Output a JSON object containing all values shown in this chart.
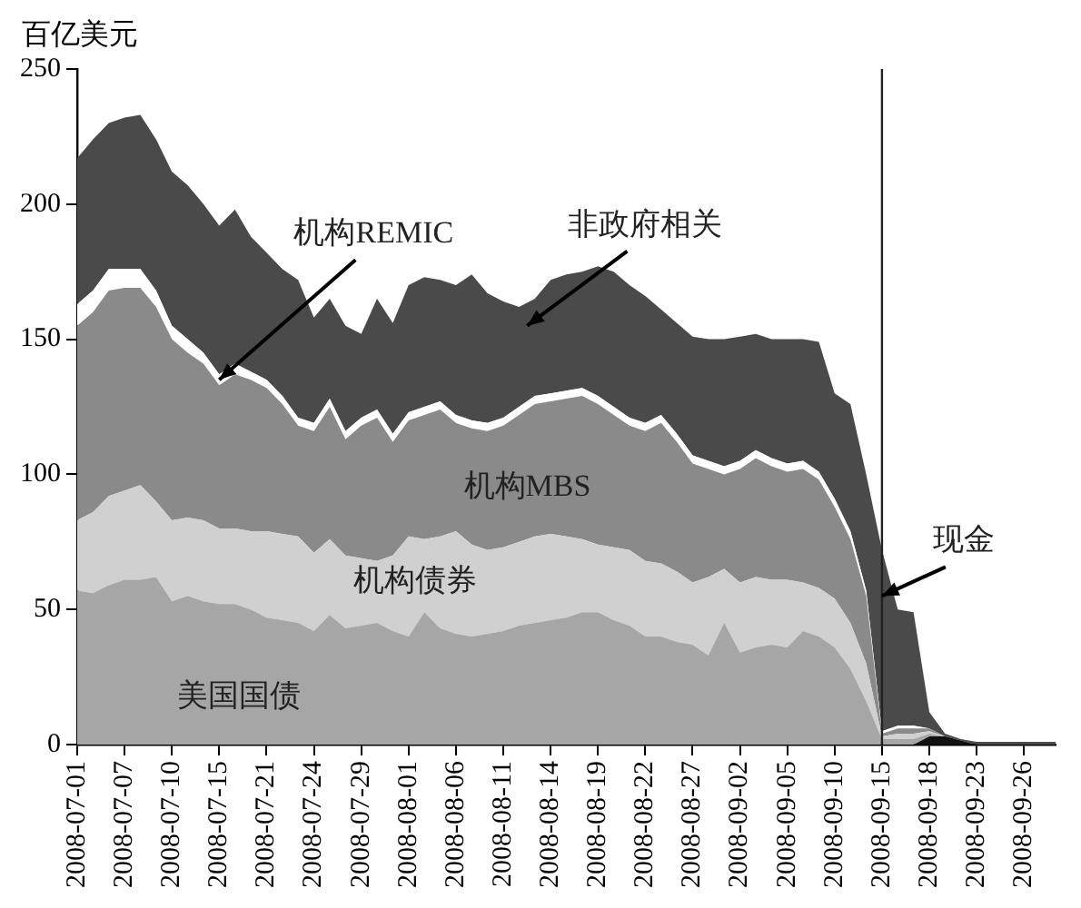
{
  "chart_data": {
    "type": "area",
    "stacked": true,
    "ylabel": "百亿美元",
    "categories": [
      "2008-07-01",
      null,
      null,
      "2008-07-07",
      null,
      null,
      "2008-07-10",
      null,
      null,
      "2008-07-15",
      null,
      null,
      "2008-07-21",
      null,
      null,
      "2008-07-24",
      null,
      null,
      "2008-07-29",
      null,
      null,
      "2008-08-01",
      null,
      null,
      "2008-08-06",
      null,
      null,
      "2008-08-11",
      null,
      null,
      "2008-08-14",
      null,
      null,
      "2008-08-19",
      null,
      null,
      "2008-08-22",
      null,
      null,
      "2008-08-27",
      null,
      null,
      "2008-09-02",
      null,
      null,
      "2008-09-05",
      null,
      null,
      "2008-09-10",
      null,
      null,
      "2008-09-15",
      null,
      null,
      "2008-09-18",
      null,
      null,
      "2008-09-23",
      null,
      null,
      "2008-09-26",
      null,
      null
    ],
    "series": [
      {
        "color": "#111111",
        "values": [
          0,
          0,
          0,
          0,
          0,
          0,
          0,
          0,
          0,
          0,
          0,
          0,
          0,
          0,
          0,
          0,
          0,
          0,
          0,
          0,
          0,
          0,
          0,
          0,
          0,
          0,
          0,
          0,
          0,
          0,
          0,
          0,
          0,
          0,
          0,
          0,
          0,
          0,
          0,
          0,
          0,
          0,
          0,
          0,
          0,
          0,
          0,
          0,
          0,
          0,
          0,
          0,
          0,
          0,
          3,
          3,
          1.5,
          0,
          0,
          0,
          0,
          0,
          0
        ]
      },
      {
        "color": "#a6a6a6",
        "values": [
          57,
          56,
          59,
          61,
          61,
          62,
          53,
          55,
          53,
          52,
          52,
          50,
          47,
          46,
          45,
          42,
          48,
          43,
          44,
          45,
          42,
          40,
          49,
          43,
          41,
          40,
          41,
          42,
          44,
          45,
          46,
          47,
          49,
          49,
          46,
          44,
          40,
          40,
          38,
          37,
          33,
          45,
          34,
          36,
          37,
          36,
          42,
          40,
          36,
          28,
          16,
          2,
          2,
          2,
          1,
          0,
          0,
          0,
          0,
          0,
          0,
          0,
          0
        ]
      },
      {
        "color": "#d0d0d0",
        "values": [
          26,
          30,
          33,
          33,
          35,
          28,
          30,
          29,
          30,
          28,
          28,
          29,
          32,
          32,
          32,
          29,
          28,
          27,
          25,
          23,
          28,
          37,
          27,
          34,
          38,
          34,
          31,
          31,
          31,
          32,
          32,
          30,
          27,
          25,
          27,
          28,
          28,
          27,
          26,
          23,
          29,
          20,
          26,
          26,
          24,
          25,
          18,
          18,
          18,
          17,
          14,
          1,
          2,
          2,
          1,
          0,
          0,
          0,
          0,
          0,
          0,
          0,
          0
        ]
      },
      {
        "color": "#8a8a8a",
        "values": [
          72,
          74,
          76,
          75,
          73,
          72,
          67,
          61,
          58,
          53,
          57,
          56,
          53,
          48,
          41,
          45,
          49,
          43,
          49,
          53,
          42,
          43,
          46,
          47,
          40,
          43,
          44,
          45,
          47,
          49,
          49,
          51,
          53,
          52,
          49,
          46,
          48,
          52,
          48,
          44,
          40,
          35,
          42,
          44,
          42,
          40,
          42,
          40,
          34,
          31,
          25,
          1,
          2,
          2,
          1,
          0,
          0,
          0,
          0,
          0,
          0,
          0,
          0
        ]
      },
      {
        "color": "#ffffff",
        "values": [
          8,
          8,
          8,
          7,
          7,
          6,
          5,
          5,
          4,
          4,
          4,
          3,
          3,
          3,
          3,
          3,
          3,
          3,
          3,
          3,
          3,
          3,
          3,
          3,
          3,
          3,
          3,
          3,
          3,
          3,
          3,
          3,
          3,
          3,
          3,
          3,
          3,
          3,
          3,
          3,
          3,
          3,
          3,
          3,
          3,
          3,
          3,
          3,
          3,
          3,
          2,
          1,
          1,
          1,
          0,
          0,
          0,
          0,
          0,
          0,
          0,
          0,
          0
        ]
      },
      {
        "color": "#4a4a4a",
        "values": [
          54,
          56,
          54,
          56,
          57,
          56,
          57,
          57,
          55,
          55,
          57,
          50,
          47,
          47,
          51,
          39,
          37,
          39,
          31,
          41,
          41,
          47,
          48,
          45,
          48,
          54,
          48,
          43,
          37,
          36,
          42,
          43,
          43,
          48,
          50,
          49,
          47,
          39,
          41,
          44,
          45,
          47,
          46,
          43,
          44,
          46,
          45,
          48,
          39,
          47,
          43,
          67,
          43,
          42,
          6,
          1,
          0.5,
          1,
          1,
          1,
          1,
          1,
          1
        ]
      }
    ],
    "ylim": [
      0,
      250
    ],
    "yticks": [
      0,
      50,
      100,
      150,
      200,
      250
    ],
    "ref_lines": [
      {
        "axis": "x",
        "value": "2008-09-15",
        "color": "#222222"
      }
    ],
    "annotations": [
      {
        "text": "机构REMIC",
        "x": "2008-07-15",
        "y": 135
      },
      "非政府相关",
      "机构MBS",
      "机构债券",
      "美国国债",
      {
        "text": "现金",
        "x": "2008-09-15",
        "y": 55
      }
    ]
  }
}
